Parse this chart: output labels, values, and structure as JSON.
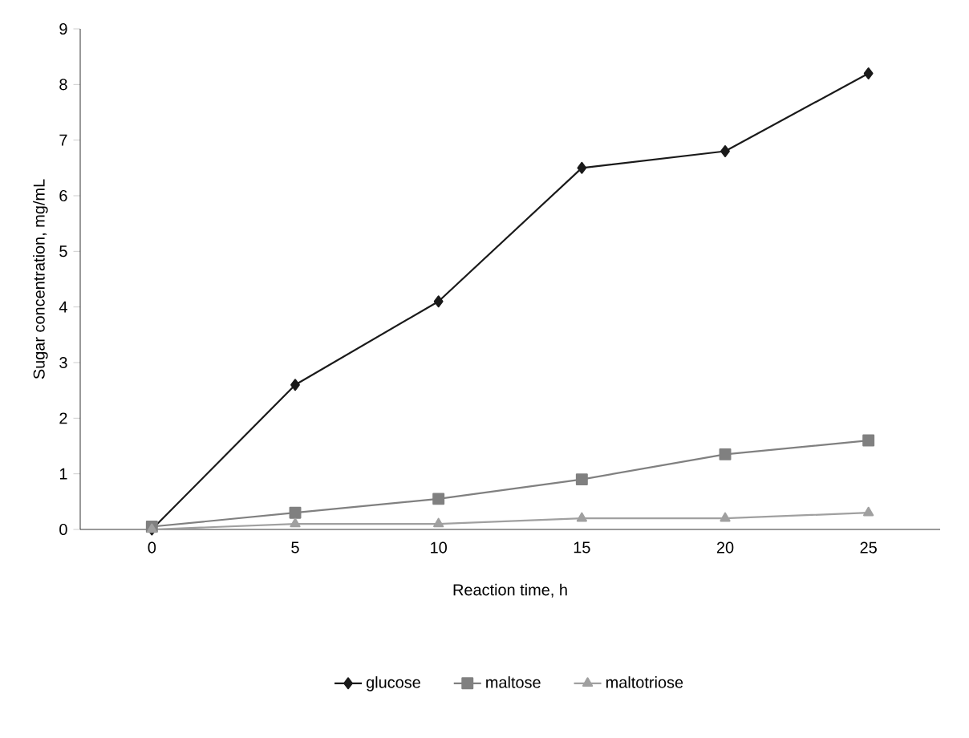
{
  "chart_data": {
    "type": "line",
    "xlabel": "Reaction time, h",
    "ylabel": "Sugar concentration, mg/mL",
    "categories": [
      "0",
      "5",
      "10",
      "15",
      "20",
      "25"
    ],
    "ylim": [
      0,
      9
    ],
    "yticks": [
      0,
      1,
      2,
      3,
      4,
      5,
      6,
      7,
      8,
      9
    ],
    "grid": false,
    "legend": "bottom",
    "line_style": "solid",
    "series": [
      {
        "name": "glucose",
        "color": "#1a1a1a",
        "marker": "diamond",
        "values": [
          0,
          2.6,
          4.1,
          6.5,
          6.8,
          8.2
        ]
      },
      {
        "name": "maltose",
        "color": "#808080",
        "marker": "square",
        "values": [
          0.05,
          0.3,
          0.55,
          0.9,
          1.35,
          1.6
        ]
      },
      {
        "name": "maltotriose",
        "color": "#a0a0a0",
        "marker": "triangle",
        "values": [
          0,
          0.1,
          0.1,
          0.2,
          0.2,
          0.3
        ]
      }
    ]
  }
}
